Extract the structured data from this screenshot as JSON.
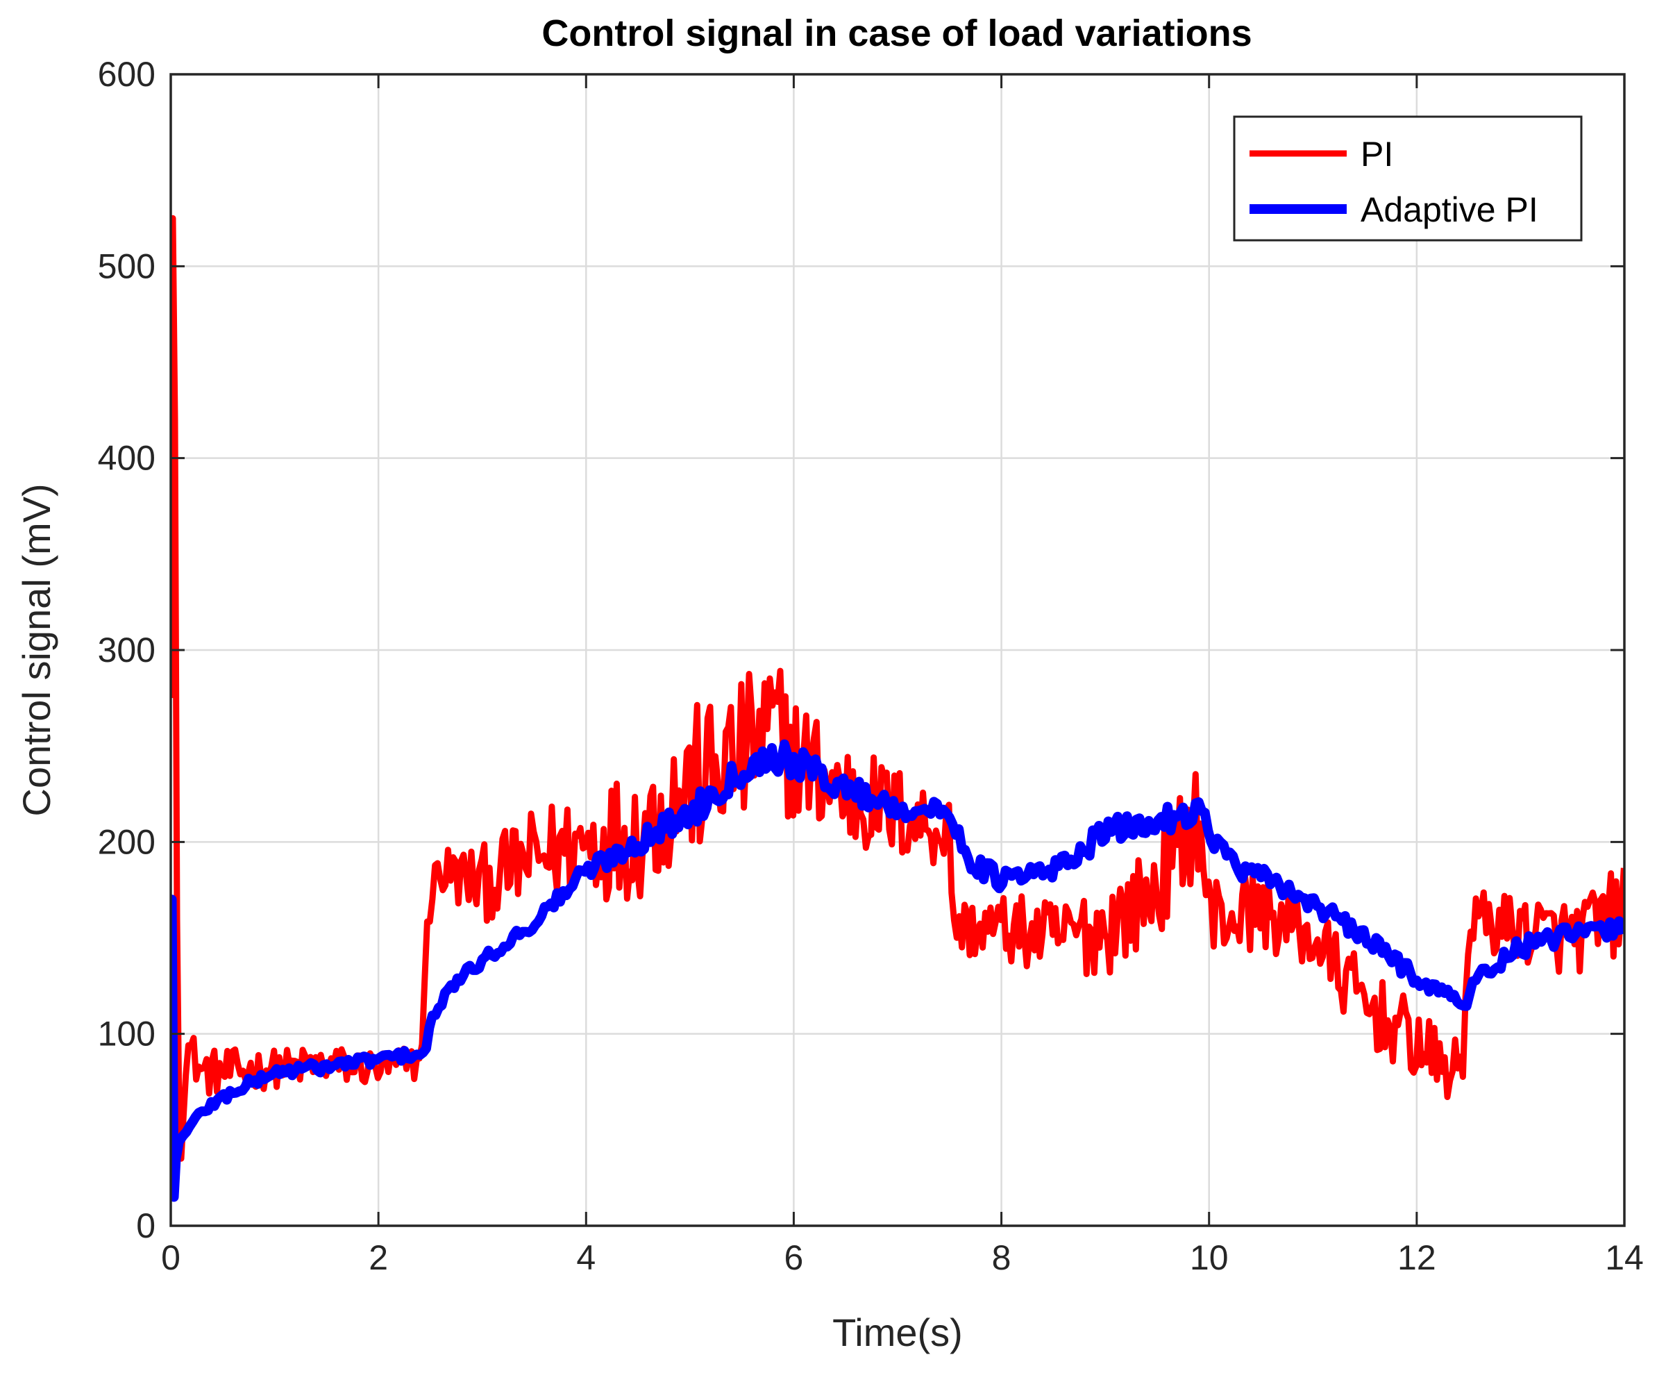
{
  "chart_data": {
    "type": "line",
    "title": "Control signal in case of load variations",
    "xlabel": "Time(s)",
    "ylabel": "Control signal (mV)",
    "xlim": [
      0,
      14
    ],
    "ylim": [
      0,
      600
    ],
    "xticks": [
      0,
      2,
      4,
      6,
      8,
      10,
      12,
      14
    ],
    "yticks": [
      0,
      100,
      200,
      300,
      400,
      500,
      600
    ],
    "xtick_labels": [
      "0",
      "2",
      "4",
      "6",
      "8",
      "10",
      "12",
      "14"
    ],
    "ytick_labels": [
      "0",
      "100",
      "200",
      "300",
      "400",
      "500",
      "600"
    ],
    "grid": true,
    "legend_position": "top-right",
    "series": [
      {
        "name": "PI",
        "color": "#ff0000",
        "note": "noisy signal; values are the approximate trend centre with noise amplitude",
        "x": [
          0,
          0.02,
          0.04,
          0.06,
          0.08,
          0.1,
          0.15,
          0.3,
          0.5,
          1.0,
          1.5,
          2.0,
          2.4,
          2.5,
          2.6,
          3.0,
          3.5,
          4.0,
          4.5,
          5.0,
          5.5,
          5.8,
          6.0,
          6.5,
          7.0,
          7.5,
          7.55,
          8.0,
          8.5,
          9.0,
          9.5,
          9.9,
          10.0,
          10.5,
          11.0,
          11.5,
          12.0,
          12.3,
          12.45,
          12.5,
          13.0,
          13.5,
          14.0
        ],
        "values": [
          275,
          525,
          420,
          160,
          60,
          35,
          95,
          80,
          80,
          82,
          84,
          82,
          85,
          175,
          185,
          178,
          192,
          200,
          205,
          230,
          245,
          260,
          245,
          225,
          215,
          205,
          155,
          155,
          150,
          155,
          175,
          215,
          160,
          165,
          150,
          115,
          95,
          80,
          85,
          160,
          155,
          150,
          165
        ],
        "noise": [
          0,
          0,
          0,
          0,
          0,
          0,
          12,
          12,
          12,
          10,
          10,
          10,
          10,
          15,
          15,
          20,
          25,
          30,
          35,
          40,
          40,
          40,
          35,
          30,
          25,
          20,
          15,
          18,
          20,
          25,
          25,
          30,
          25,
          20,
          20,
          20,
          20,
          15,
          15,
          15,
          18,
          20,
          25
        ]
      },
      {
        "name": "Adaptive PI",
        "color": "#0000ff",
        "x": [
          0,
          0.01,
          0.03,
          0.05,
          0.08,
          0.12,
          0.3,
          0.6,
          1.0,
          1.5,
          2.0,
          2.45,
          2.5,
          2.7,
          3.0,
          3.5,
          4.0,
          4.5,
          5.0,
          5.5,
          5.8,
          6.0,
          6.5,
          7.0,
          7.5,
          7.7,
          8.0,
          8.5,
          9.0,
          9.5,
          9.9,
          10.0,
          10.3,
          10.6,
          11.0,
          11.5,
          12.0,
          12.3,
          12.45,
          12.6,
          13.0,
          13.5,
          14.0
        ],
        "values": [
          160,
          170,
          15,
          35,
          44,
          47,
          60,
          70,
          80,
          83,
          87,
          90,
          105,
          125,
          138,
          158,
          185,
          200,
          215,
          238,
          245,
          242,
          228,
          218,
          215,
          190,
          180,
          185,
          205,
          210,
          218,
          205,
          185,
          180,
          168,
          150,
          130,
          120,
          115,
          130,
          145,
          152,
          155
        ],
        "noise": [
          0,
          0,
          0,
          0,
          0,
          0,
          3,
          3,
          3,
          3,
          3,
          3,
          3,
          3,
          3,
          4,
          5,
          6,
          8,
          8,
          8,
          8,
          7,
          6,
          5,
          5,
          6,
          6,
          7,
          7,
          7,
          6,
          5,
          5,
          5,
          5,
          5,
          4,
          4,
          4,
          5,
          5,
          5
        ]
      }
    ]
  }
}
